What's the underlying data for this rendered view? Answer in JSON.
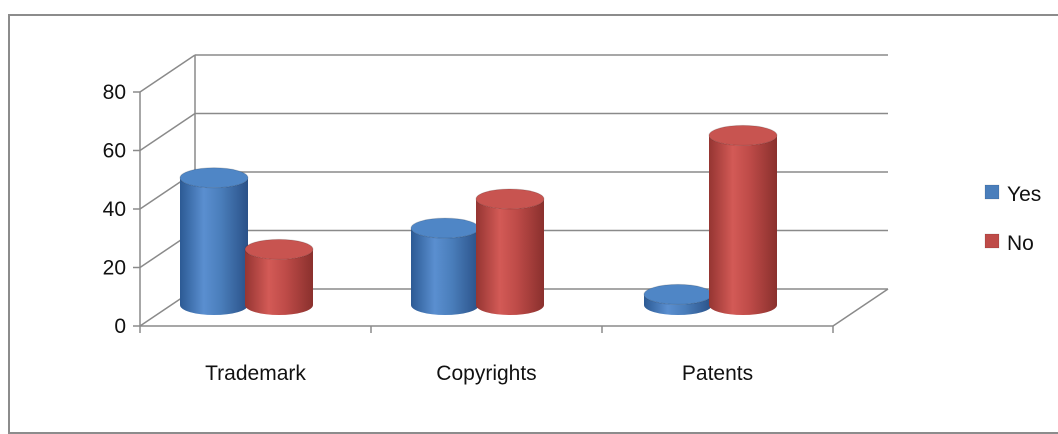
{
  "chart_data": {
    "type": "bar",
    "style": "3d-cylinder",
    "categories": [
      "Trademark",
      "Copyrights",
      "Patents"
    ],
    "series": [
      {
        "name": "Yes",
        "color": "#4a7ebb",
        "values": [
          48,
          29,
          4
        ]
      },
      {
        "name": "No",
        "color": "#be4b48",
        "values": [
          21,
          40,
          64
        ]
      }
    ],
    "yticks": [
      "0",
      "20",
      "40",
      "60",
      "80"
    ],
    "ylim": [
      0,
      80
    ],
    "grid": true,
    "legend_position": "right"
  }
}
